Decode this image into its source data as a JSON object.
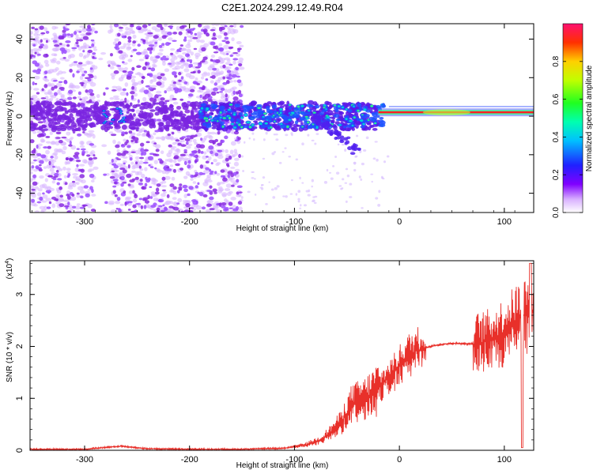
{
  "title": "C2E1.2024.299.12.49.R04",
  "colors": {
    "background": "#ffffff",
    "axis": "#000000",
    "snr_line": "#e8302a",
    "spectrogram_low": "#a040ff",
    "carrier": "#ff2020"
  },
  "chart_data": [
    {
      "type": "heatmap",
      "title": "C2E1.2024.299.12.49.R04",
      "xlabel": "Height of straight line (km)",
      "ylabel": "Frequency (Hz)",
      "xlim": [
        -352,
        128
      ],
      "ylim": [
        -50,
        48
      ],
      "x_ticks": [
        -300,
        -200,
        -100,
        0,
        100
      ],
      "y_ticks": [
        -40,
        -20,
        0,
        20,
        40
      ],
      "colorbar": {
        "label": "Normalized spectral amplitude",
        "range": [
          0,
          1
        ],
        "ticks": [
          "0.0",
          "0.2",
          "0.4",
          "0.6",
          "0.8"
        ],
        "tick_values": [
          0.0,
          0.2,
          0.4,
          0.6,
          0.8
        ]
      },
      "features": {
        "scattered_noise_x_range": [
          -352,
          -150
        ],
        "noise_band_x_range": [
          -190,
          -20
        ],
        "carrier_frequency_hz": 2,
        "carrier_x_range": [
          -20,
          128
        ],
        "downward_streak": {
          "from": [
            -80,
            0
          ],
          "to": [
            -40,
            -18
          ]
        }
      }
    },
    {
      "type": "line",
      "xlabel": "Height of straight line (km)",
      "ylabel": "SNR (10 * v/v)",
      "y_multiplier": "(x10",
      "y_multiplier_exp": "4",
      "y_multiplier_close": ")",
      "xlim": [
        -352,
        128
      ],
      "ylim": [
        0,
        3.65
      ],
      "x_ticks": [
        -300,
        -200,
        -100,
        0,
        100
      ],
      "y_ticks": [
        0,
        1,
        2,
        3
      ],
      "series": [
        {
          "values_envelope": [
            [
              -352,
              0.02
            ],
            [
              -300,
              0.02
            ],
            [
              -265,
              0.08
            ],
            [
              -240,
              0.03
            ],
            [
              -200,
              0.02
            ],
            [
              -150,
              0.02
            ],
            [
              -110,
              0.04
            ],
            [
              -90,
              0.1
            ],
            [
              -75,
              0.2
            ],
            [
              -65,
              0.35
            ],
            [
              -55,
              0.55
            ],
            [
              -45,
              0.9
            ],
            [
              -35,
              0.95
            ],
            [
              -25,
              1.1
            ],
            [
              -15,
              1.3
            ],
            [
              -5,
              1.5
            ],
            [
              5,
              1.75
            ],
            [
              15,
              1.9
            ],
            [
              25,
              1.98
            ],
            [
              35,
              2.02
            ],
            [
              45,
              2.05
            ],
            [
              55,
              2.06
            ],
            [
              65,
              2.05
            ],
            [
              75,
              2.05
            ],
            [
              85,
              2.1
            ],
            [
              95,
              2.2
            ],
            [
              105,
              2.35
            ],
            [
              115,
              2.55
            ],
            [
              125,
              2.7
            ],
            [
              128,
              2.7
            ]
          ]
        }
      ]
    }
  ]
}
